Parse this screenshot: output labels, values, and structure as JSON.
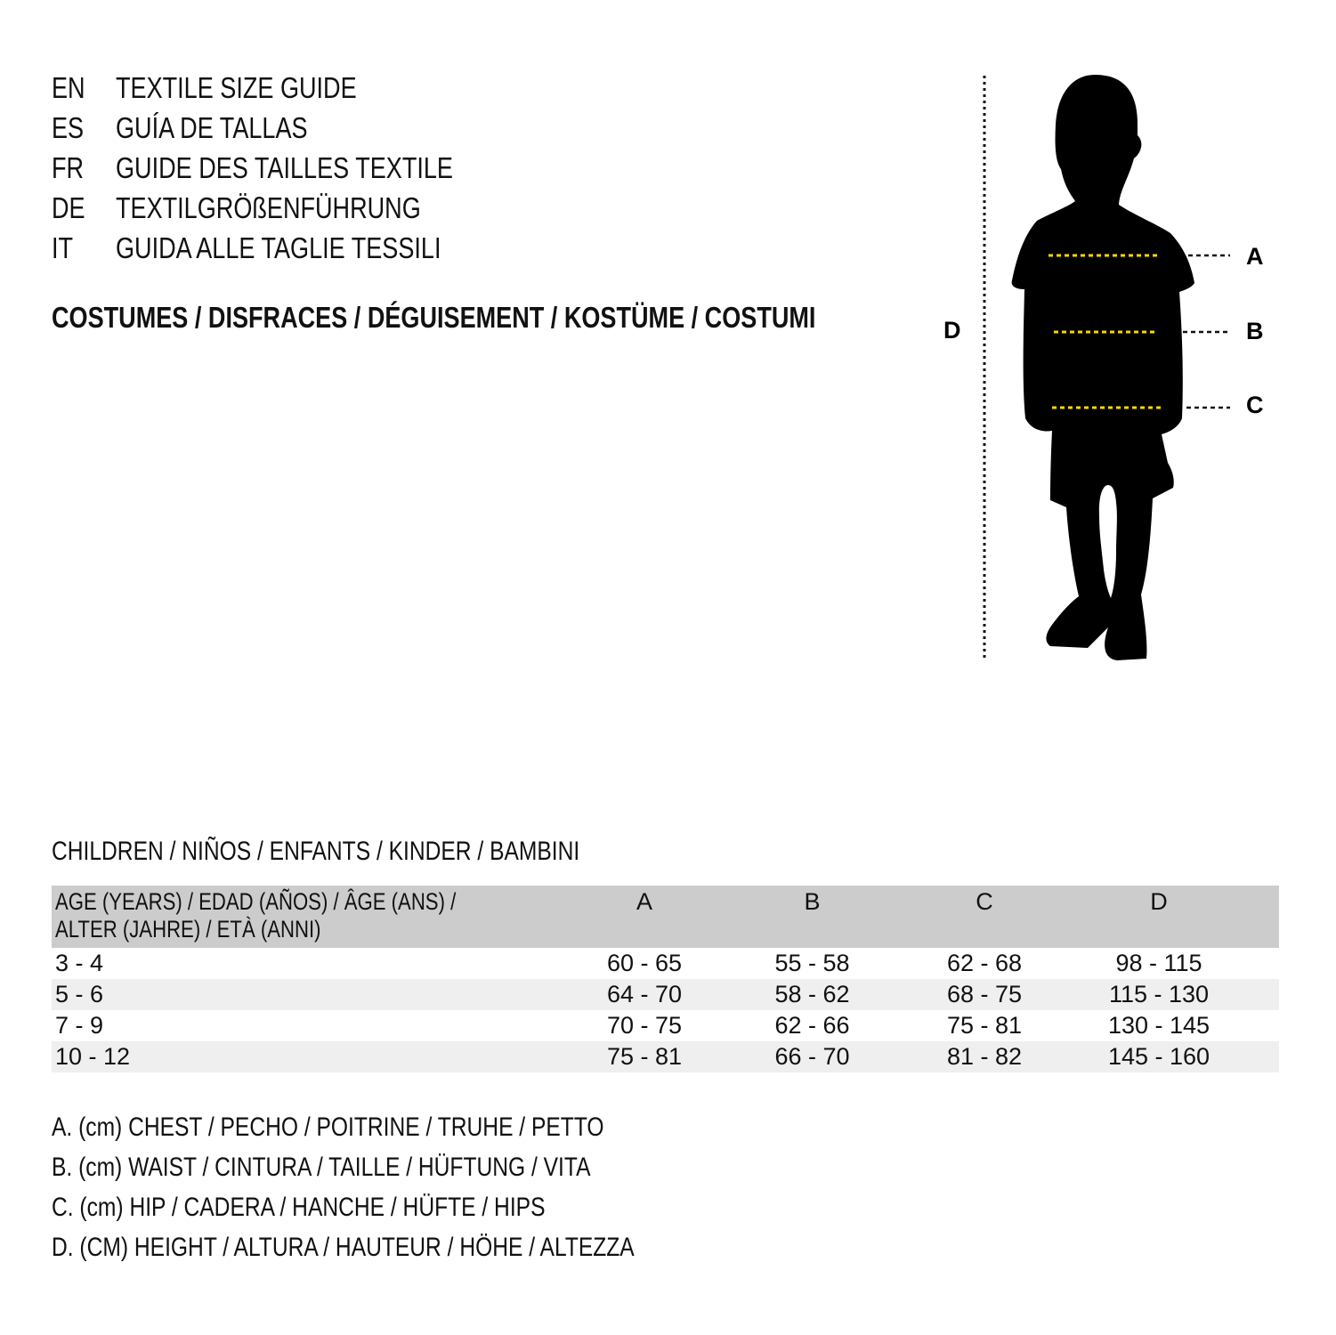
{
  "languages": [
    {
      "code": "EN",
      "title": "TEXTILE SIZE GUIDE"
    },
    {
      "code": "ES",
      "title": "GUÍA DE TALLAS"
    },
    {
      "code": "FR",
      "title": "GUIDE DES TAILLES TEXTILE"
    },
    {
      "code": "DE",
      "title": "TEXTILGRÖßENFÜHRUNG"
    },
    {
      "code": "IT",
      "title": "GUIDA ALLE TAGLIE TESSILI"
    }
  ],
  "subtitle": "COSTUMES / DISFRACES / DÉGUISEMENT / KOSTÜME / COSTUMI",
  "diagram": {
    "labels": {
      "a": "A",
      "b": "B",
      "c": "C",
      "d": "D"
    },
    "measure_line_color": "#f5d800",
    "silhouette_color": "#000000"
  },
  "section_title": "CHILDREN / NIÑOS / ENFANTS / KINDER / BAMBINI",
  "table": {
    "headers": [
      "AGE (YEARS) / EDAD (AÑOS) / ÂGE (ANS) / ALTER (JAHRE) / ETÀ (ANNI)",
      "A",
      "B",
      "C",
      "D"
    ],
    "header_line1": "AGE (YEARS) / EDAD (AÑOS) / ÂGE (ANS) /",
    "header_line2": "ALTER (JAHRE) / ETÀ (ANNI)",
    "rows": [
      [
        "3 - 4",
        "60 - 65",
        "55 - 58",
        "62 - 68",
        "98 - 115"
      ],
      [
        "5 - 6",
        "64 - 70",
        "58 - 62",
        "68 - 75",
        "115 - 130"
      ],
      [
        "7 - 9",
        "70 - 75",
        "62 - 66",
        "75 - 81",
        "130 - 145"
      ],
      [
        "10 - 12",
        "75 - 81",
        "66 - 70",
        "81 - 82",
        "145 - 160"
      ]
    ]
  },
  "legend": [
    "A. (cm) CHEST / PECHO / POITRINE / TRUHE / PETTO",
    "B. (cm) WAIST / CINTURA / TAILLE / HÜFTUNG / VITA",
    "C. (cm) HIP / CADERA / HANCHE / HÜFTE / HIPS",
    "D. (CM) HEIGHT / ALTURA / HAUTEUR / HÖHE / ALTEZZA"
  ]
}
